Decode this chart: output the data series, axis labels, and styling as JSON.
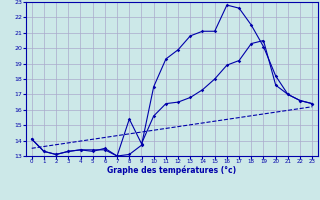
{
  "xlabel": "Graphe des températures (°c)",
  "bg_color": "#cce8e8",
  "grid_color": "#aaaacc",
  "line_color": "#0000aa",
  "xlim": [
    -0.5,
    23.5
  ],
  "ylim": [
    13,
    23
  ],
  "xticks": [
    0,
    1,
    2,
    3,
    4,
    5,
    6,
    7,
    8,
    9,
    10,
    11,
    12,
    13,
    14,
    15,
    16,
    17,
    18,
    19,
    20,
    21,
    22,
    23
  ],
  "yticks": [
    13,
    14,
    15,
    16,
    17,
    18,
    19,
    20,
    21,
    22,
    23
  ],
  "line1_x": [
    0,
    1,
    2,
    3,
    4,
    5,
    6,
    7,
    8,
    9,
    10,
    11,
    12,
    13,
    14,
    15,
    16,
    17,
    18,
    19,
    20,
    21,
    22,
    23
  ],
  "line1_y": [
    14.1,
    13.3,
    13.1,
    13.3,
    13.4,
    13.4,
    13.4,
    13.0,
    13.1,
    13.7,
    17.5,
    19.3,
    19.9,
    20.8,
    21.1,
    21.1,
    22.8,
    22.6,
    21.5,
    20.1,
    18.2,
    17.0,
    16.6,
    16.4
  ],
  "line2_x": [
    0,
    1,
    2,
    3,
    4,
    5,
    6,
    7,
    8,
    9,
    10,
    11,
    12,
    13,
    14,
    15,
    16,
    17,
    18,
    19,
    20,
    21,
    22,
    23
  ],
  "line2_y": [
    14.1,
    13.3,
    13.1,
    13.3,
    13.4,
    13.3,
    13.5,
    13.0,
    15.4,
    13.8,
    15.6,
    16.4,
    16.5,
    16.8,
    17.3,
    18.0,
    18.9,
    19.2,
    20.3,
    20.5,
    17.6,
    17.0,
    16.6,
    16.4
  ],
  "line3_x": [
    0,
    23
  ],
  "line3_y": [
    13.5,
    16.2
  ]
}
